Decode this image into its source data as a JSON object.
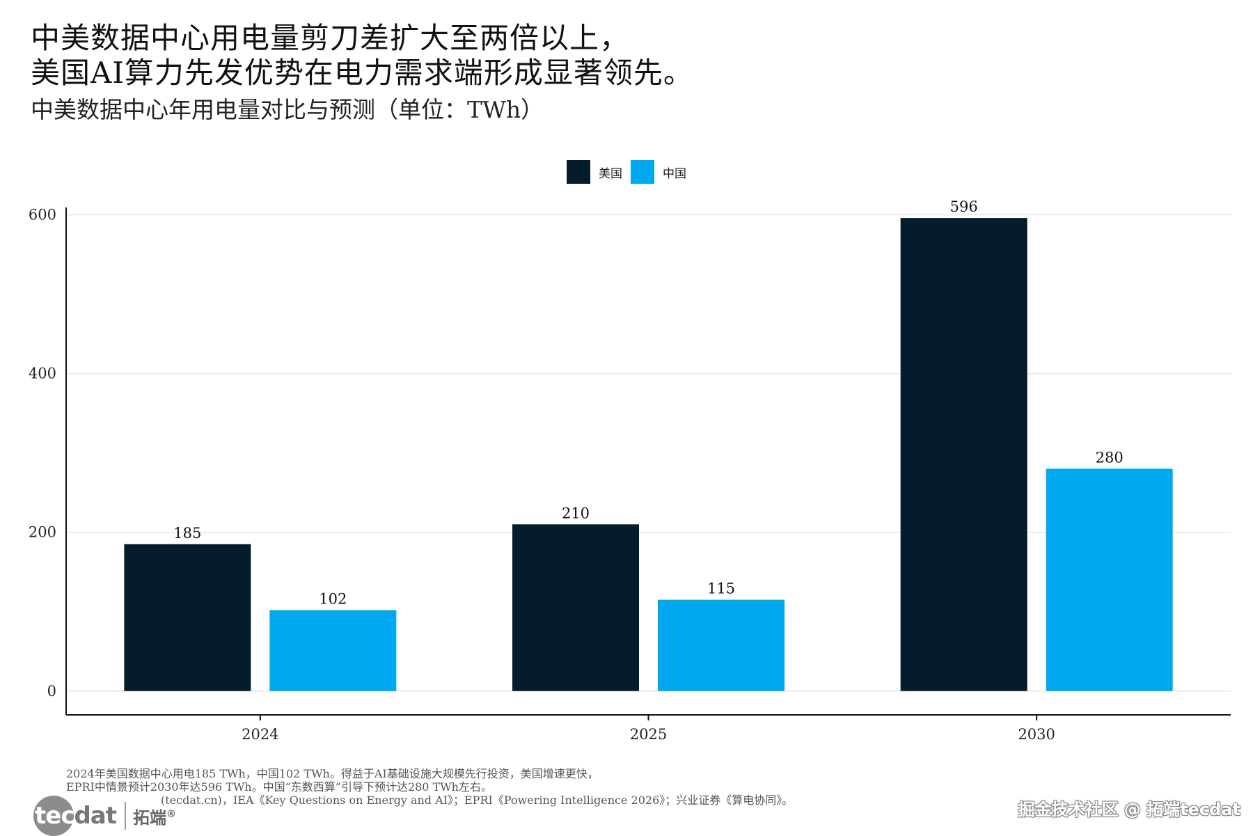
{
  "header": {
    "title_line1": "中美数据中心用电量剪刀差扩大至两倍以上，",
    "title_line2": "美国AI算力先发优势在电力需求端形成显著领先。",
    "subtitle": "中美数据中心年用电量对比与预测（单位：TWh）"
  },
  "colors": {
    "us": "#041c2c",
    "china": "#00a8f0",
    "grid": "#e6e6e6",
    "axis": "#111111"
  },
  "chart_data": {
    "type": "bar",
    "categories": [
      "2024",
      "2025",
      "2030"
    ],
    "series": [
      {
        "name": "美国",
        "values": [
          185,
          210,
          596
        ]
      },
      {
        "name": "中国",
        "values": [
          102,
          115,
          280
        ]
      }
    ],
    "data_labels": [
      [
        "185",
        "210",
        "596"
      ],
      [
        "102",
        "115",
        "280"
      ]
    ],
    "y_ticks": [
      0,
      200,
      400,
      600
    ],
    "ylim": [
      -30,
      625
    ],
    "grid": "horizontal",
    "legend_position": "top-center"
  },
  "footnote": {
    "line1": "2024年美国数据中心用电185 TWh，中国102 TWh。得益于AI基础设施大规模先行投资，美国增速更快，",
    "line2": "EPRI中情景预计2030年达596 TWh。中国“东数西算”引导下预计达280 TWh左右。",
    "line3": "(tecdat.cn)，IEA《Key Questions on Energy and AI》；EPRI《Powering Intelligence 2026》；兴业证券《算电协同》。"
  },
  "logo": {
    "tec": "tec",
    "dat": "dat",
    "cn": "拓端",
    "reg": "®"
  },
  "watermark": "掘金技术社区 @ 拓端tecdat"
}
